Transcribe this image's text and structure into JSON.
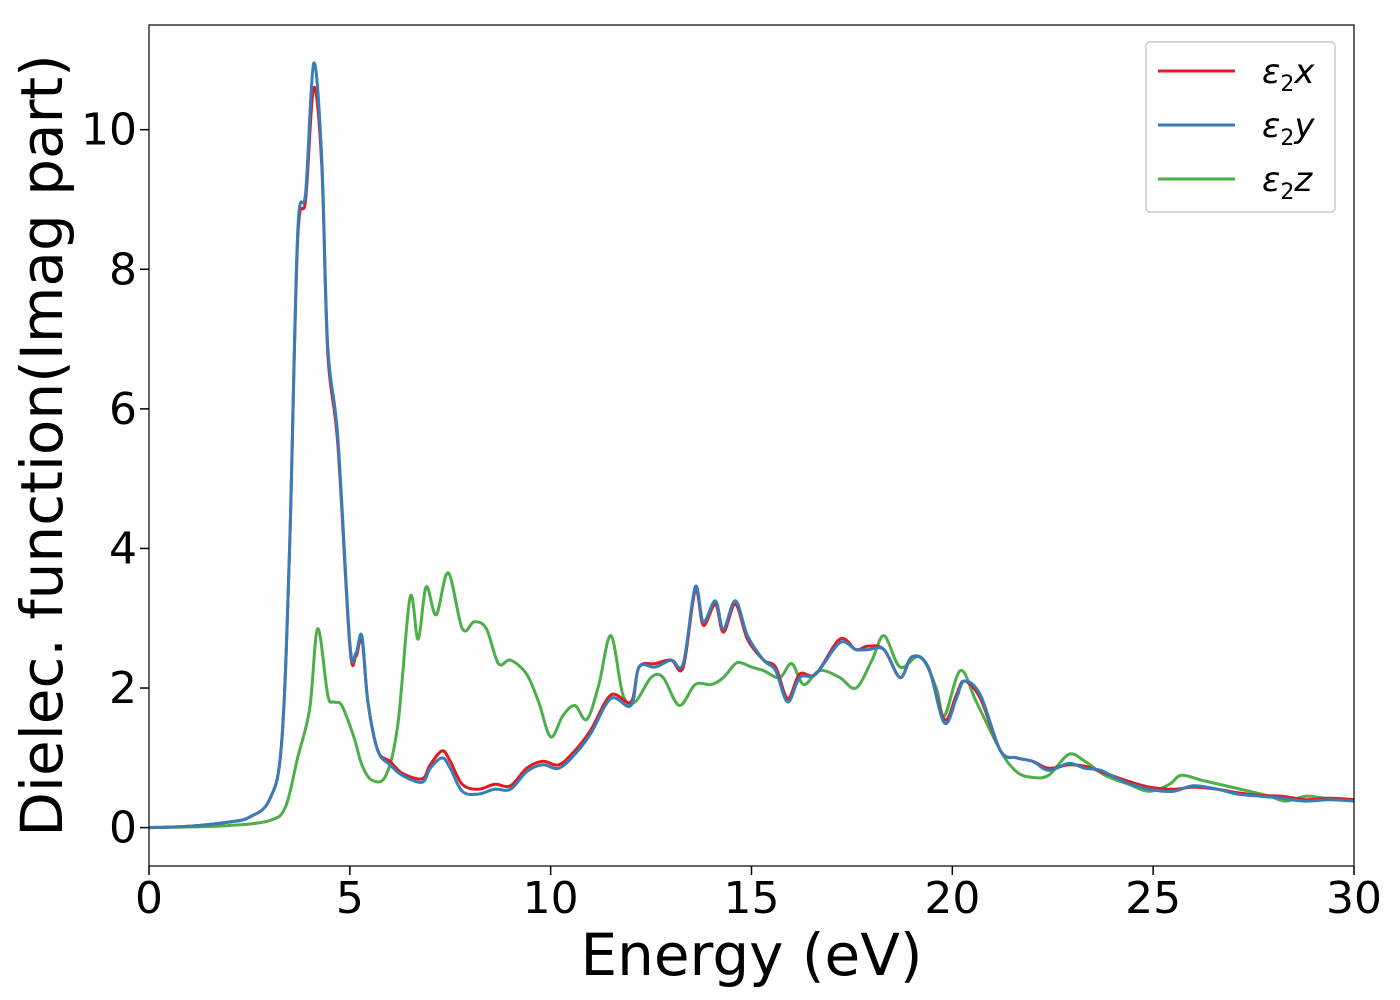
{
  "chart_data": {
    "type": "line",
    "title": "",
    "xlabel": "Energy (eV)",
    "ylabel": "Dielec. function(Imag part)",
    "xlim": [
      0,
      30
    ],
    "ylim": [
      -0.55,
      11.5
    ],
    "x_ticks": [
      0,
      5,
      10,
      15,
      20,
      25,
      30
    ],
    "y_ticks": [
      0,
      2,
      4,
      6,
      8,
      10
    ],
    "x_tick_labels": [
      "0",
      "5",
      "10",
      "15",
      "20",
      "25",
      "30"
    ],
    "y_tick_labels": [
      "0",
      "2",
      "4",
      "6",
      "8",
      "10"
    ],
    "grid": false,
    "legend_placement": "top-right",
    "series": [
      {
        "name": "ε₂x",
        "legend_base": "ε",
        "legend_sub": "2",
        "legend_var": "x",
        "color": "#e41a1c",
        "points": [
          [
            0,
            0
          ],
          [
            1,
            0.02
          ],
          [
            2,
            0.08
          ],
          [
            2.5,
            0.15
          ],
          [
            3,
            0.4
          ],
          [
            3.3,
            1.2
          ],
          [
            3.5,
            4.0
          ],
          [
            3.7,
            8.4
          ],
          [
            3.9,
            9.0
          ],
          [
            4.1,
            10.6
          ],
          [
            4.3,
            9.5
          ],
          [
            4.45,
            6.8
          ],
          [
            4.7,
            5.5
          ],
          [
            5.0,
            2.6
          ],
          [
            5.15,
            2.45
          ],
          [
            5.3,
            2.7
          ],
          [
            5.45,
            1.8
          ],
          [
            5.7,
            1.1
          ],
          [
            6.0,
            0.95
          ],
          [
            6.3,
            0.78
          ],
          [
            6.8,
            0.7
          ],
          [
            7.0,
            0.9
          ],
          [
            7.3,
            1.1
          ],
          [
            7.5,
            0.95
          ],
          [
            7.8,
            0.62
          ],
          [
            8.2,
            0.55
          ],
          [
            8.6,
            0.62
          ],
          [
            9.0,
            0.6
          ],
          [
            9.4,
            0.85
          ],
          [
            9.8,
            0.95
          ],
          [
            10.2,
            0.9
          ],
          [
            10.6,
            1.1
          ],
          [
            11.0,
            1.4
          ],
          [
            11.5,
            1.9
          ],
          [
            12.0,
            1.8
          ],
          [
            12.2,
            2.3
          ],
          [
            12.6,
            2.35
          ],
          [
            13.0,
            2.4
          ],
          [
            13.3,
            2.3
          ],
          [
            13.6,
            3.4
          ],
          [
            13.8,
            2.9
          ],
          [
            14.1,
            3.2
          ],
          [
            14.3,
            2.8
          ],
          [
            14.6,
            3.2
          ],
          [
            14.9,
            2.7
          ],
          [
            15.3,
            2.4
          ],
          [
            15.6,
            2.3
          ],
          [
            15.9,
            1.85
          ],
          [
            16.2,
            2.2
          ],
          [
            16.6,
            2.2
          ],
          [
            17.2,
            2.7
          ],
          [
            17.6,
            2.55
          ],
          [
            17.9,
            2.6
          ],
          [
            18.3,
            2.55
          ],
          [
            18.7,
            2.15
          ],
          [
            19.0,
            2.45
          ],
          [
            19.4,
            2.3
          ],
          [
            19.8,
            1.55
          ],
          [
            20.1,
            1.9
          ],
          [
            20.3,
            2.1
          ],
          [
            20.7,
            1.85
          ],
          [
            21.2,
            1.1
          ],
          [
            21.6,
            1.0
          ],
          [
            22.0,
            0.95
          ],
          [
            22.4,
            0.85
          ],
          [
            22.9,
            0.9
          ],
          [
            23.3,
            0.88
          ],
          [
            23.7,
            0.8
          ],
          [
            24.3,
            0.68
          ],
          [
            24.9,
            0.58
          ],
          [
            25.5,
            0.55
          ],
          [
            26.0,
            0.58
          ],
          [
            26.6,
            0.55
          ],
          [
            27.1,
            0.5
          ],
          [
            27.7,
            0.46
          ],
          [
            28.2,
            0.45
          ],
          [
            28.8,
            0.4
          ],
          [
            29.4,
            0.42
          ],
          [
            30,
            0.4
          ]
        ]
      },
      {
        "name": "ε₂y",
        "legend_base": "ε",
        "legend_sub": "2",
        "legend_var": "y",
        "color": "#377eb8",
        "points": [
          [
            0,
            0
          ],
          [
            1,
            0.02
          ],
          [
            2,
            0.08
          ],
          [
            2.5,
            0.15
          ],
          [
            3,
            0.4
          ],
          [
            3.3,
            1.2
          ],
          [
            3.5,
            4.0
          ],
          [
            3.7,
            8.5
          ],
          [
            3.9,
            9.1
          ],
          [
            4.1,
            10.95
          ],
          [
            4.3,
            9.6
          ],
          [
            4.45,
            6.9
          ],
          [
            4.7,
            5.6
          ],
          [
            5.0,
            2.65
          ],
          [
            5.15,
            2.5
          ],
          [
            5.3,
            2.75
          ],
          [
            5.45,
            1.8
          ],
          [
            5.7,
            1.1
          ],
          [
            6.0,
            0.9
          ],
          [
            6.3,
            0.75
          ],
          [
            6.8,
            0.65
          ],
          [
            7.0,
            0.85
          ],
          [
            7.3,
            1.0
          ],
          [
            7.5,
            0.85
          ],
          [
            7.8,
            0.52
          ],
          [
            8.2,
            0.48
          ],
          [
            8.6,
            0.55
          ],
          [
            9.0,
            0.55
          ],
          [
            9.4,
            0.8
          ],
          [
            9.8,
            0.9
          ],
          [
            10.2,
            0.85
          ],
          [
            10.6,
            1.05
          ],
          [
            11.0,
            1.35
          ],
          [
            11.5,
            1.85
          ],
          [
            12.0,
            1.75
          ],
          [
            12.2,
            2.3
          ],
          [
            12.6,
            2.3
          ],
          [
            13.0,
            2.4
          ],
          [
            13.3,
            2.35
          ],
          [
            13.6,
            3.45
          ],
          [
            13.8,
            2.95
          ],
          [
            14.1,
            3.25
          ],
          [
            14.3,
            2.85
          ],
          [
            14.6,
            3.25
          ],
          [
            14.9,
            2.75
          ],
          [
            15.3,
            2.4
          ],
          [
            15.6,
            2.25
          ],
          [
            15.9,
            1.8
          ],
          [
            16.2,
            2.15
          ],
          [
            16.6,
            2.2
          ],
          [
            17.2,
            2.65
          ],
          [
            17.6,
            2.55
          ],
          [
            17.9,
            2.55
          ],
          [
            18.3,
            2.55
          ],
          [
            18.7,
            2.15
          ],
          [
            19.0,
            2.45
          ],
          [
            19.4,
            2.3
          ],
          [
            19.8,
            1.5
          ],
          [
            20.1,
            1.85
          ],
          [
            20.3,
            2.1
          ],
          [
            20.7,
            1.9
          ],
          [
            21.2,
            1.1
          ],
          [
            21.6,
            1.0
          ],
          [
            22.0,
            0.95
          ],
          [
            22.4,
            0.82
          ],
          [
            22.9,
            0.92
          ],
          [
            23.3,
            0.85
          ],
          [
            23.7,
            0.82
          ],
          [
            24.3,
            0.65
          ],
          [
            24.9,
            0.55
          ],
          [
            25.5,
            0.52
          ],
          [
            26.0,
            0.6
          ],
          [
            26.6,
            0.55
          ],
          [
            27.1,
            0.48
          ],
          [
            27.7,
            0.45
          ],
          [
            28.2,
            0.42
          ],
          [
            28.8,
            0.38
          ],
          [
            29.4,
            0.4
          ],
          [
            30,
            0.38
          ]
        ]
      },
      {
        "name": "ε₂z",
        "legend_base": "ε",
        "legend_sub": "2",
        "legend_var": "z",
        "color": "#4daf4a",
        "points": [
          [
            0,
            0
          ],
          [
            1,
            0.01
          ],
          [
            2,
            0.03
          ],
          [
            3,
            0.1
          ],
          [
            3.4,
            0.3
          ],
          [
            3.7,
            1.0
          ],
          [
            4.0,
            1.7
          ],
          [
            4.2,
            2.85
          ],
          [
            4.45,
            1.9
          ],
          [
            4.6,
            1.8
          ],
          [
            4.8,
            1.75
          ],
          [
            5.1,
            1.3
          ],
          [
            5.3,
            0.9
          ],
          [
            5.55,
            0.68
          ],
          [
            5.9,
            0.75
          ],
          [
            6.2,
            1.5
          ],
          [
            6.5,
            3.3
          ],
          [
            6.7,
            2.7
          ],
          [
            6.9,
            3.45
          ],
          [
            7.15,
            3.05
          ],
          [
            7.45,
            3.65
          ],
          [
            7.8,
            2.85
          ],
          [
            8.1,
            2.95
          ],
          [
            8.4,
            2.85
          ],
          [
            8.7,
            2.35
          ],
          [
            9.0,
            2.4
          ],
          [
            9.4,
            2.2
          ],
          [
            9.7,
            1.8
          ],
          [
            10.0,
            1.3
          ],
          [
            10.3,
            1.6
          ],
          [
            10.6,
            1.75
          ],
          [
            10.9,
            1.55
          ],
          [
            11.2,
            2.05
          ],
          [
            11.5,
            2.75
          ],
          [
            11.8,
            1.9
          ],
          [
            12.1,
            1.8
          ],
          [
            12.5,
            2.15
          ],
          [
            12.8,
            2.15
          ],
          [
            13.2,
            1.75
          ],
          [
            13.6,
            2.05
          ],
          [
            14.0,
            2.05
          ],
          [
            14.3,
            2.15
          ],
          [
            14.6,
            2.35
          ],
          [
            14.8,
            2.35
          ],
          [
            15.0,
            2.3
          ],
          [
            15.3,
            2.25
          ],
          [
            15.7,
            2.15
          ],
          [
            16.0,
            2.35
          ],
          [
            16.3,
            2.05
          ],
          [
            16.7,
            2.25
          ],
          [
            17.2,
            2.15
          ],
          [
            17.6,
            2.0
          ],
          [
            18.0,
            2.4
          ],
          [
            18.3,
            2.75
          ],
          [
            18.7,
            2.3
          ],
          [
            19.2,
            2.45
          ],
          [
            19.6,
            2.0
          ],
          [
            19.8,
            1.6
          ],
          [
            20.2,
            2.25
          ],
          [
            20.6,
            1.8
          ],
          [
            21.2,
            1.1
          ],
          [
            21.6,
            0.8
          ],
          [
            22.0,
            0.72
          ],
          [
            22.4,
            0.75
          ],
          [
            22.9,
            1.05
          ],
          [
            23.3,
            0.95
          ],
          [
            23.8,
            0.75
          ],
          [
            24.4,
            0.62
          ],
          [
            24.9,
            0.52
          ],
          [
            25.4,
            0.62
          ],
          [
            25.7,
            0.75
          ],
          [
            26.2,
            0.68
          ],
          [
            26.8,
            0.6
          ],
          [
            27.4,
            0.52
          ],
          [
            27.9,
            0.45
          ],
          [
            28.3,
            0.38
          ],
          [
            28.8,
            0.45
          ],
          [
            29.3,
            0.42
          ],
          [
            30,
            0.4
          ]
        ]
      }
    ]
  }
}
